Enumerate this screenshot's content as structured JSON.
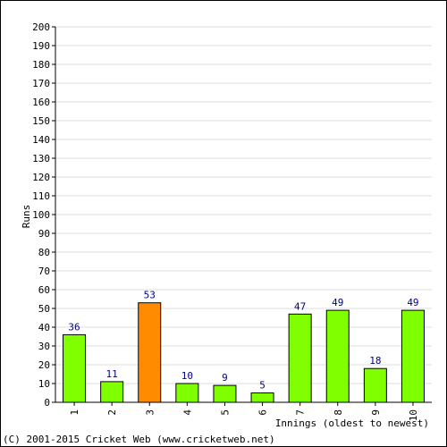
{
  "chart_data": {
    "type": "bar",
    "categories": [
      "1",
      "2",
      "3",
      "4",
      "5",
      "6",
      "7",
      "8",
      "9",
      "10"
    ],
    "values": [
      36,
      11,
      53,
      10,
      9,
      5,
      47,
      49,
      18,
      49
    ],
    "bar_colors": [
      "#80ff00",
      "#80ff00",
      "#ff8c00",
      "#80ff00",
      "#80ff00",
      "#80ff00",
      "#80ff00",
      "#80ff00",
      "#80ff00",
      "#80ff00"
    ],
    "xlabel": "Innings (oldest to newest)",
    "ylabel": "Runs",
    "ylim": [
      0,
      200
    ],
    "ytick_step": 10,
    "grid": true,
    "label_color": "#000080"
  },
  "footer": "(C) 2001-2015 Cricket Web (www.cricketweb.net)"
}
